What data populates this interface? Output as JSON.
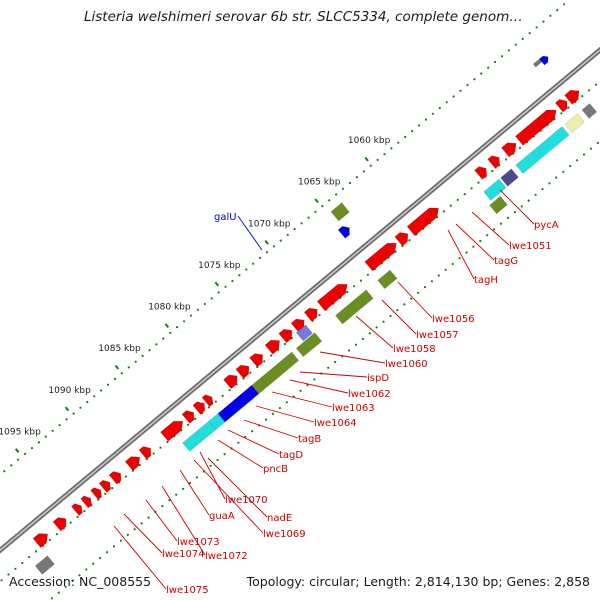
{
  "title": "Listeria welshimeri serovar 6b str. SLCC5334, complete genom…",
  "accession": "Accession: NC_008555",
  "summary": "Topology: circular; Length: 2,814,130 bp; Genes: 2,858",
  "ticks": [
    {
      "label": "1060 kbp"
    },
    {
      "label": "1065 kbp"
    },
    {
      "label": "1070 kbp"
    },
    {
      "label": "1075 kbp"
    },
    {
      "label": "1080 kbp"
    },
    {
      "label": "1085 kbp"
    },
    {
      "label": "1090 kbp"
    },
    {
      "label": "1095 kbp"
    }
  ],
  "gene_labels": [
    {
      "text": "galU",
      "color": "#0000cc"
    },
    {
      "text": "pycA",
      "color": "#cc0000"
    },
    {
      "text": "lwe1051",
      "color": "#cc0000"
    },
    {
      "text": "tagG",
      "color": "#cc0000"
    },
    {
      "text": "tagH",
      "color": "#cc0000"
    },
    {
      "text": "lwe1056",
      "color": "#cc0000"
    },
    {
      "text": "lwe1057",
      "color": "#cc0000"
    },
    {
      "text": "lwe1058",
      "color": "#cc0000"
    },
    {
      "text": "lwe1060",
      "color": "#cc0000"
    },
    {
      "text": "ispD",
      "color": "#cc0000"
    },
    {
      "text": "lwe1062",
      "color": "#cc0000"
    },
    {
      "text": "lwe1063",
      "color": "#cc0000"
    },
    {
      "text": "lwe1064",
      "color": "#cc0000"
    },
    {
      "text": "tagB",
      "color": "#cc0000"
    },
    {
      "text": "tagD",
      "color": "#cc0000"
    },
    {
      "text": "pncB",
      "color": "#cc0000"
    },
    {
      "text": "lwe1070",
      "color": "#cc0000"
    },
    {
      "text": "nadE",
      "color": "#cc0000"
    },
    {
      "text": "guaA",
      "color": "#cc0000"
    },
    {
      "text": "lwe1069",
      "color": "#cc0000"
    },
    {
      "text": "lwe1073",
      "color": "#cc0000"
    },
    {
      "text": "lwe1074",
      "color": "#cc0000"
    },
    {
      "text": "lwe1072",
      "color": "#cc0000"
    },
    {
      "text": "lwe1075",
      "color": "#cc0000"
    }
  ],
  "colors": {
    "backbone": "#8c8c8c",
    "cds": "#ee0000",
    "gc_skew": "#1a7a1a",
    "olive": "#6b8e23",
    "blue": "#0000ee",
    "cyan": "#22dddd",
    "navy": "#4a4a8c",
    "green": "#33cc33",
    "khaki": "#eeeeaa",
    "grey": "#777777",
    "teal": "#22ddaa",
    "lavender": "#7777dd"
  }
}
